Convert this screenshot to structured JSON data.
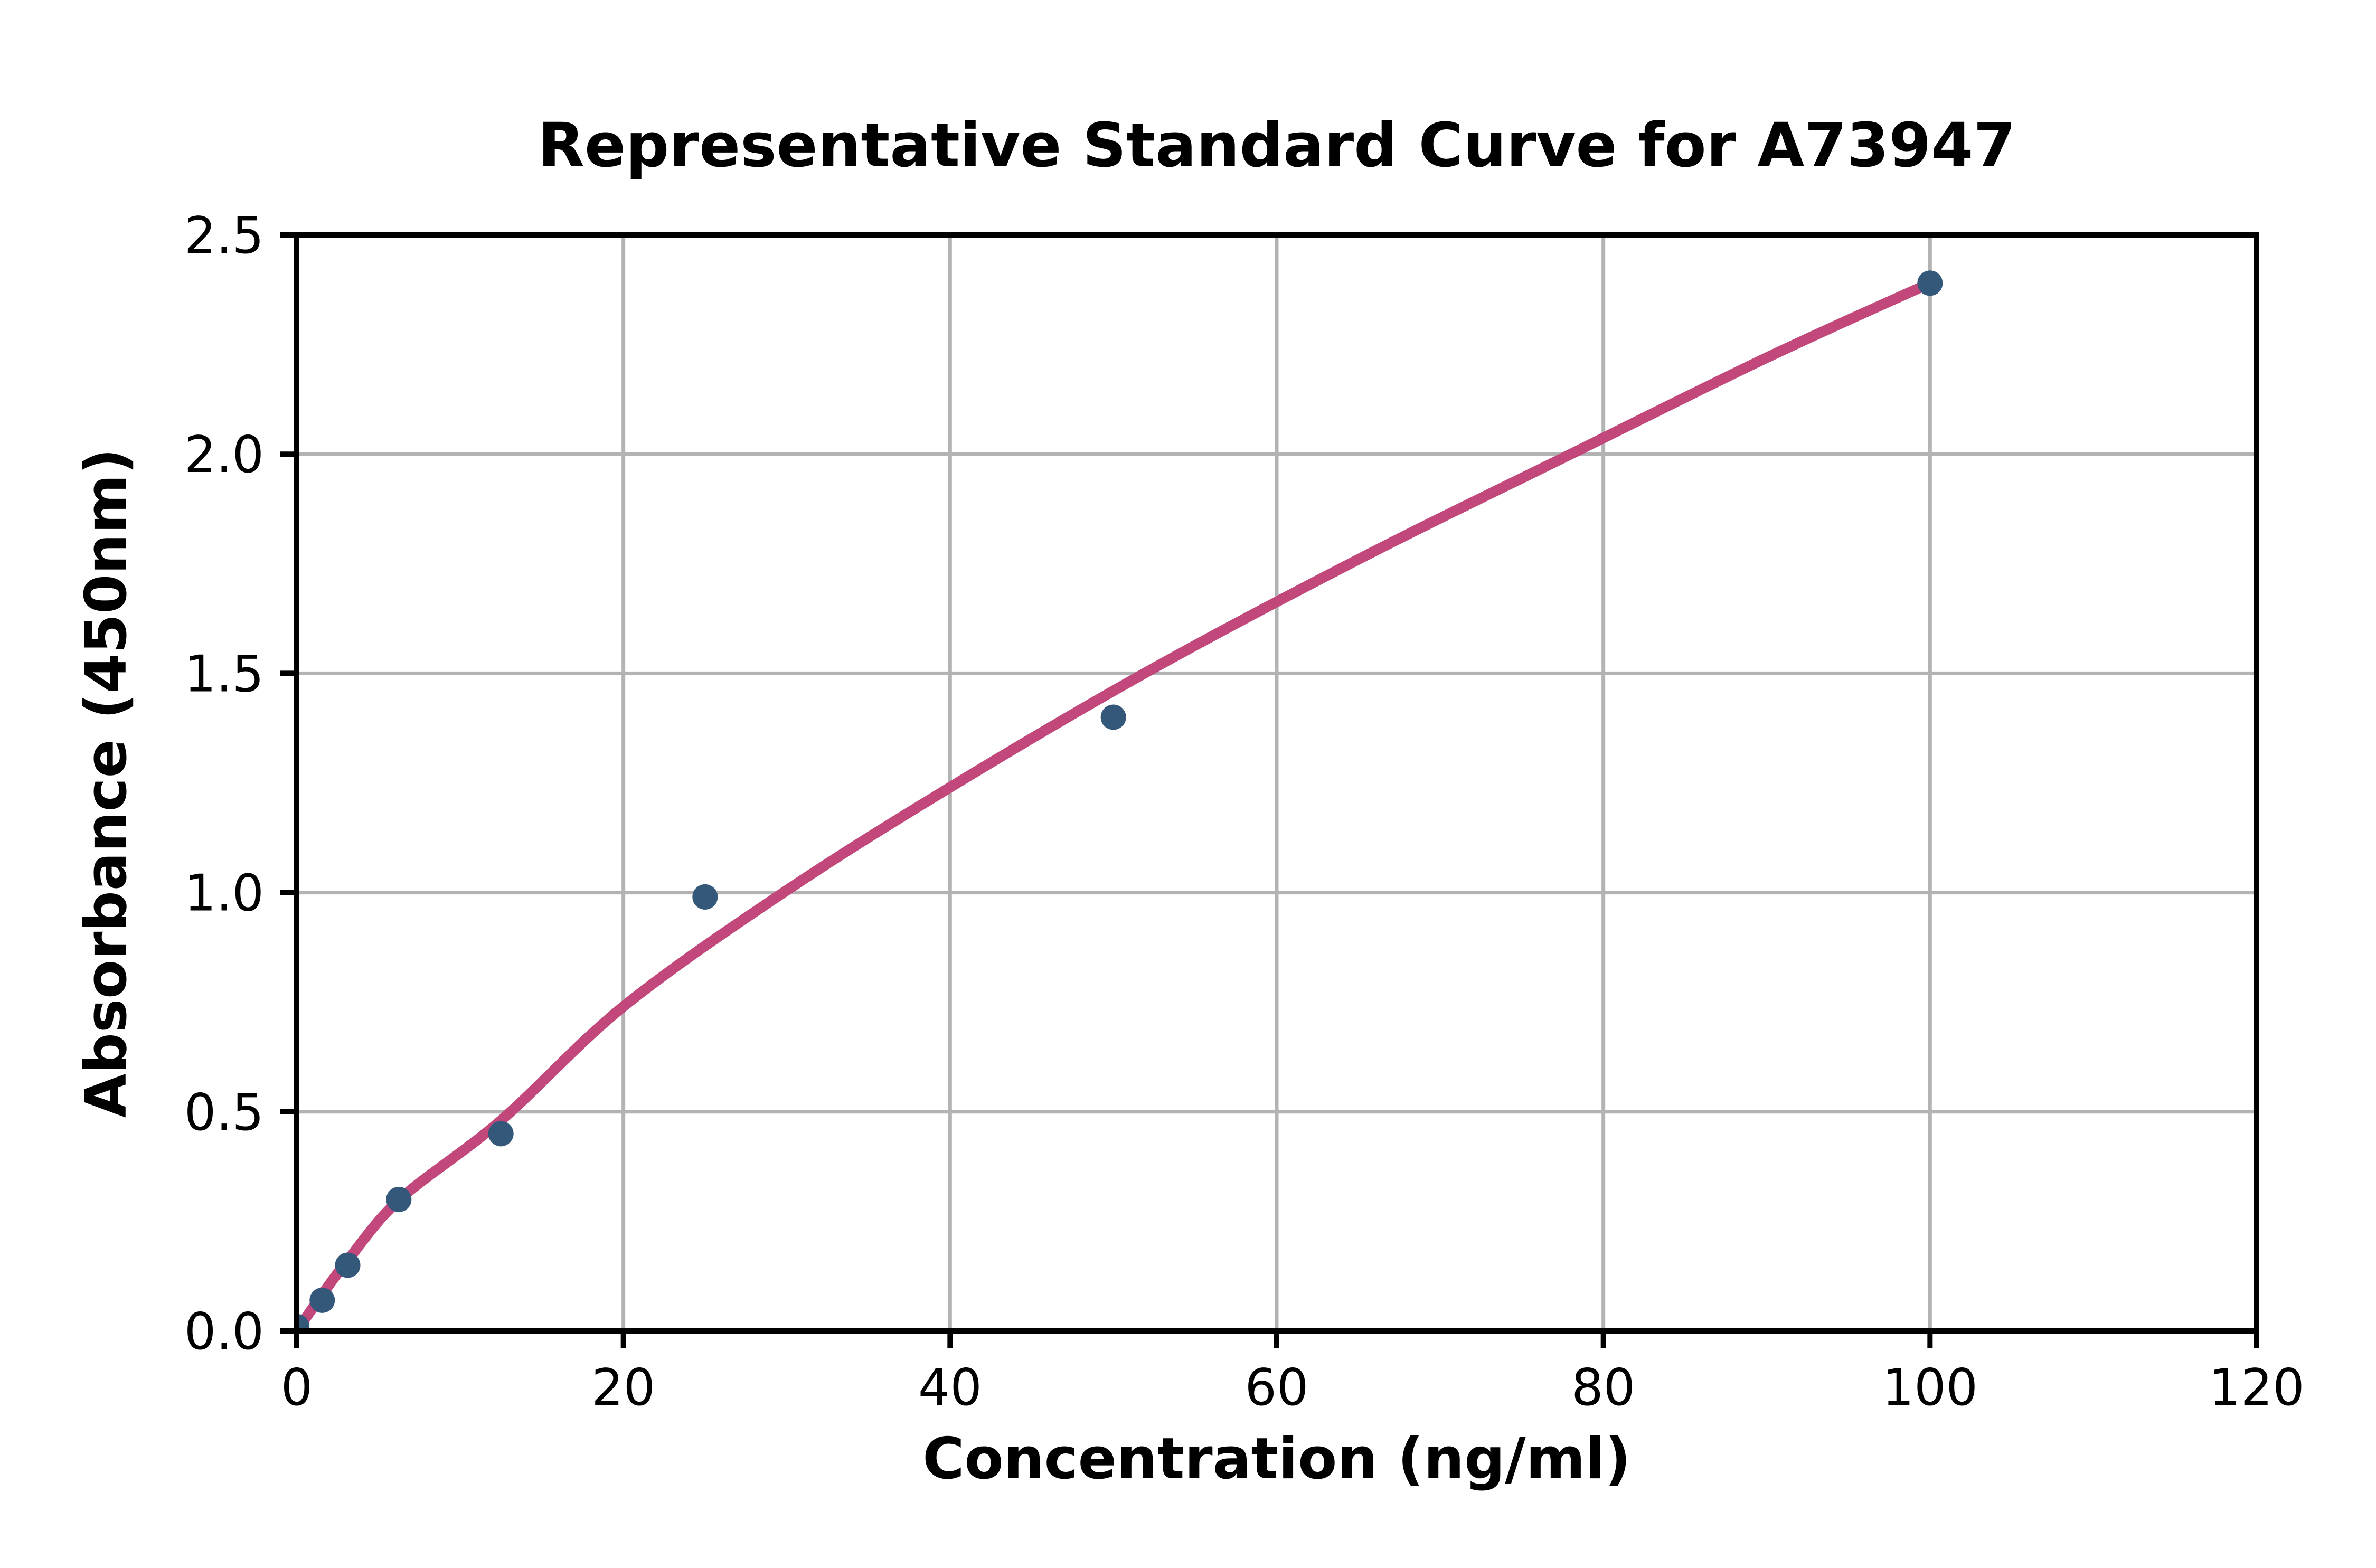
{
  "title": "Representative Standard Curve for A73947",
  "chart_data": {
    "type": "scatter",
    "title": "Representative Standard Curve for A73947",
    "xlabel": "Concentration (ng/ml)",
    "ylabel": "Absorbance (450nm)",
    "xlim": [
      0,
      120
    ],
    "ylim": [
      0,
      2.5
    ],
    "x_ticks": [
      0,
      20,
      40,
      60,
      80,
      100,
      120
    ],
    "x_tick_labels": [
      "0",
      "20",
      "40",
      "60",
      "80",
      "100",
      "120"
    ],
    "y_ticks": [
      0.0,
      0.5,
      1.0,
      1.5,
      2.0,
      2.5
    ],
    "y_tick_labels": [
      "0.0",
      "0.5",
      "1.0",
      "1.5",
      "2.0",
      "2.5"
    ],
    "grid": true,
    "legend_position": "none",
    "series": [
      {
        "name": "standard-points",
        "type": "scatter",
        "marker": "circle",
        "color": "#33587a",
        "points": [
          [
            0,
            0.01
          ],
          [
            1.56,
            0.07
          ],
          [
            3.12,
            0.15
          ],
          [
            6.25,
            0.3
          ],
          [
            12.5,
            0.45
          ],
          [
            25,
            0.99
          ],
          [
            50,
            1.4
          ],
          [
            100,
            2.39
          ]
        ]
      },
      {
        "name": "fitted-curve",
        "type": "line",
        "color": "#c2477a",
        "points": [
          [
            0,
            0.0
          ],
          [
            1.5,
            0.08
          ],
          [
            3.1,
            0.16
          ],
          [
            6.3,
            0.3
          ],
          [
            12.5,
            0.48
          ],
          [
            20,
            0.74
          ],
          [
            29.8,
            1.0
          ],
          [
            40,
            1.24
          ],
          [
            51.9,
            1.5
          ],
          [
            65,
            1.76
          ],
          [
            78,
            2.0
          ],
          [
            90,
            2.22
          ],
          [
            100,
            2.39
          ]
        ]
      }
    ]
  },
  "colors": {
    "background": "#ffffff",
    "curve": "#c2477a",
    "marker": "#33587a",
    "grid": "#b3b3b3",
    "spine": "#000000",
    "text": "#000000"
  }
}
